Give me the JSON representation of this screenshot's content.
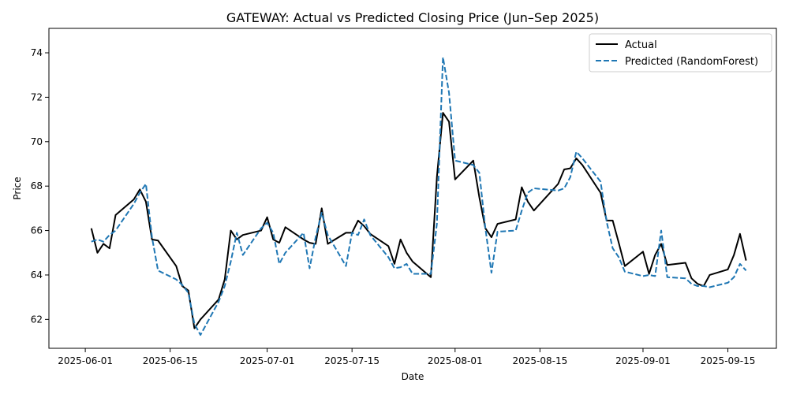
{
  "chart_data": {
    "type": "line",
    "title": "GATEWAY: Actual vs Predicted Closing Price (Jun–Sep 2025)",
    "xlabel": "Date",
    "ylabel": "Price",
    "xlim": [
      "2025-05-26",
      "2025-09-23"
    ],
    "ylim": [
      60.7,
      75.1
    ],
    "x_ticks": [
      "2025-06-01",
      "2025-06-15",
      "2025-07-01",
      "2025-07-15",
      "2025-08-01",
      "2025-08-15",
      "2025-09-01",
      "2025-09-15"
    ],
    "y_ticks": [
      62,
      64,
      66,
      68,
      70,
      72,
      74
    ],
    "grid": false,
    "legend_position": "top-right",
    "series": [
      {
        "name": "Actual",
        "color": "#000000",
        "style": "solid",
        "points": [
          [
            "2025-06-02",
            66.1
          ],
          [
            "2025-06-03",
            65.0
          ],
          [
            "2025-06-04",
            65.4
          ],
          [
            "2025-06-05",
            65.2
          ],
          [
            "2025-06-06",
            66.7
          ],
          [
            "2025-06-09",
            67.4
          ],
          [
            "2025-06-10",
            67.85
          ],
          [
            "2025-06-11",
            67.3
          ],
          [
            "2025-06-12",
            65.6
          ],
          [
            "2025-06-13",
            65.55
          ],
          [
            "2025-06-16",
            64.4
          ],
          [
            "2025-06-17",
            63.5
          ],
          [
            "2025-06-18",
            63.3
          ],
          [
            "2025-06-19",
            61.6
          ],
          [
            "2025-06-20",
            62.0
          ],
          [
            "2025-06-23",
            62.9
          ],
          [
            "2025-06-24",
            63.8
          ],
          [
            "2025-06-25",
            66.0
          ],
          [
            "2025-06-26",
            65.6
          ],
          [
            "2025-06-27",
            65.8
          ],
          [
            "2025-06-30",
            66.0
          ],
          [
            "2025-07-01",
            66.6
          ],
          [
            "2025-07-02",
            65.6
          ],
          [
            "2025-07-03",
            65.45
          ],
          [
            "2025-07-04",
            66.15
          ],
          [
            "2025-07-07",
            65.6
          ],
          [
            "2025-07-08",
            65.45
          ],
          [
            "2025-07-09",
            65.4
          ],
          [
            "2025-07-10",
            67.0
          ],
          [
            "2025-07-11",
            65.4
          ],
          [
            "2025-07-14",
            65.9
          ],
          [
            "2025-07-15",
            65.9
          ],
          [
            "2025-07-16",
            66.45
          ],
          [
            "2025-07-17",
            66.2
          ],
          [
            "2025-07-18",
            65.85
          ],
          [
            "2025-07-21",
            65.3
          ],
          [
            "2025-07-22",
            64.5
          ],
          [
            "2025-07-23",
            65.6
          ],
          [
            "2025-07-24",
            65.0
          ],
          [
            "2025-07-25",
            64.6
          ],
          [
            "2025-07-28",
            63.9
          ],
          [
            "2025-07-29",
            68.4
          ],
          [
            "2025-07-30",
            71.3
          ],
          [
            "2025-07-31",
            70.9
          ],
          [
            "2025-08-01",
            68.3
          ],
          [
            "2025-08-04",
            69.15
          ],
          [
            "2025-08-05",
            67.5
          ],
          [
            "2025-08-06",
            66.1
          ],
          [
            "2025-08-07",
            65.7
          ],
          [
            "2025-08-08",
            66.3
          ],
          [
            "2025-08-11",
            66.5
          ],
          [
            "2025-08-12",
            67.95
          ],
          [
            "2025-08-13",
            67.3
          ],
          [
            "2025-08-14",
            66.9
          ],
          [
            "2025-08-18",
            68.1
          ],
          [
            "2025-08-19",
            68.75
          ],
          [
            "2025-08-20",
            68.8
          ],
          [
            "2025-08-21",
            69.25
          ],
          [
            "2025-08-22",
            68.95
          ],
          [
            "2025-08-25",
            67.7
          ],
          [
            "2025-08-26",
            66.45
          ],
          [
            "2025-08-27",
            66.45
          ],
          [
            "2025-08-28",
            65.45
          ],
          [
            "2025-08-29",
            64.4
          ],
          [
            "2025-09-01",
            65.05
          ],
          [
            "2025-09-02",
            64.05
          ],
          [
            "2025-09-03",
            64.9
          ],
          [
            "2025-09-04",
            65.4
          ],
          [
            "2025-09-05",
            64.45
          ],
          [
            "2025-09-08",
            64.55
          ],
          [
            "2025-09-09",
            63.85
          ],
          [
            "2025-09-10",
            63.6
          ],
          [
            "2025-09-11",
            63.5
          ],
          [
            "2025-09-12",
            64.0
          ],
          [
            "2025-09-15",
            64.25
          ],
          [
            "2025-09-16",
            64.9
          ],
          [
            "2025-09-17",
            65.85
          ],
          [
            "2025-09-18",
            64.65
          ]
        ]
      },
      {
        "name": "Predicted (RandomForest)",
        "color": "#1f77b4",
        "style": "dashed",
        "points": [
          [
            "2025-06-02",
            65.5
          ],
          [
            "2025-06-03",
            65.6
          ],
          [
            "2025-06-04",
            65.5
          ],
          [
            "2025-06-05",
            65.8
          ],
          [
            "2025-06-06",
            66.0
          ],
          [
            "2025-06-09",
            67.2
          ],
          [
            "2025-06-10",
            67.7
          ],
          [
            "2025-06-11",
            68.1
          ],
          [
            "2025-06-12",
            65.7
          ],
          [
            "2025-06-13",
            64.2
          ],
          [
            "2025-06-16",
            63.8
          ],
          [
            "2025-06-17",
            63.55
          ],
          [
            "2025-06-18",
            63.2
          ],
          [
            "2025-06-19",
            61.8
          ],
          [
            "2025-06-20",
            61.3
          ],
          [
            "2025-06-23",
            62.8
          ],
          [
            "2025-06-24",
            63.5
          ],
          [
            "2025-06-25",
            64.6
          ],
          [
            "2025-06-26",
            65.9
          ],
          [
            "2025-06-27",
            64.9
          ],
          [
            "2025-06-30",
            66.1
          ],
          [
            "2025-07-01",
            66.35
          ],
          [
            "2025-07-02",
            65.9
          ],
          [
            "2025-07-03",
            64.5
          ],
          [
            "2025-07-04",
            65.0
          ],
          [
            "2025-07-07",
            65.9
          ],
          [
            "2025-07-08",
            64.3
          ],
          [
            "2025-07-09",
            65.7
          ],
          [
            "2025-07-10",
            66.8
          ],
          [
            "2025-07-11",
            65.8
          ],
          [
            "2025-07-14",
            64.4
          ],
          [
            "2025-07-15",
            65.9
          ],
          [
            "2025-07-16",
            65.8
          ],
          [
            "2025-07-17",
            66.5
          ],
          [
            "2025-07-18",
            65.8
          ],
          [
            "2025-07-21",
            64.8
          ],
          [
            "2025-07-22",
            64.3
          ],
          [
            "2025-07-23",
            64.35
          ],
          [
            "2025-07-24",
            64.5
          ],
          [
            "2025-07-25",
            64.05
          ],
          [
            "2025-07-28",
            64.05
          ],
          [
            "2025-07-29",
            66.3
          ],
          [
            "2025-07-30",
            73.8
          ],
          [
            "2025-07-31",
            72.2
          ],
          [
            "2025-08-01",
            69.15
          ],
          [
            "2025-08-04",
            68.95
          ],
          [
            "2025-08-05",
            68.6
          ],
          [
            "2025-08-06",
            66.1
          ],
          [
            "2025-08-07",
            64.1
          ],
          [
            "2025-08-08",
            65.95
          ],
          [
            "2025-08-11",
            66.0
          ],
          [
            "2025-08-12",
            66.9
          ],
          [
            "2025-08-13",
            67.7
          ],
          [
            "2025-08-14",
            67.9
          ],
          [
            "2025-08-18",
            67.8
          ],
          [
            "2025-08-19",
            67.9
          ],
          [
            "2025-08-20",
            68.4
          ],
          [
            "2025-08-21",
            69.55
          ],
          [
            "2025-08-22",
            69.25
          ],
          [
            "2025-08-25",
            68.2
          ],
          [
            "2025-08-26",
            66.4
          ],
          [
            "2025-08-27",
            65.2
          ],
          [
            "2025-08-28",
            64.8
          ],
          [
            "2025-08-29",
            64.15
          ],
          [
            "2025-09-01",
            63.95
          ],
          [
            "2025-09-02",
            64.0
          ],
          [
            "2025-09-03",
            63.95
          ],
          [
            "2025-09-04",
            66.0
          ],
          [
            "2025-09-05",
            63.9
          ],
          [
            "2025-09-08",
            63.85
          ],
          [
            "2025-09-09",
            63.6
          ],
          [
            "2025-09-10",
            63.5
          ],
          [
            "2025-09-11",
            63.5
          ],
          [
            "2025-09-12",
            63.45
          ],
          [
            "2025-09-15",
            63.65
          ],
          [
            "2025-09-16",
            63.9
          ],
          [
            "2025-09-17",
            64.5
          ],
          [
            "2025-09-18",
            64.2
          ]
        ]
      }
    ]
  }
}
